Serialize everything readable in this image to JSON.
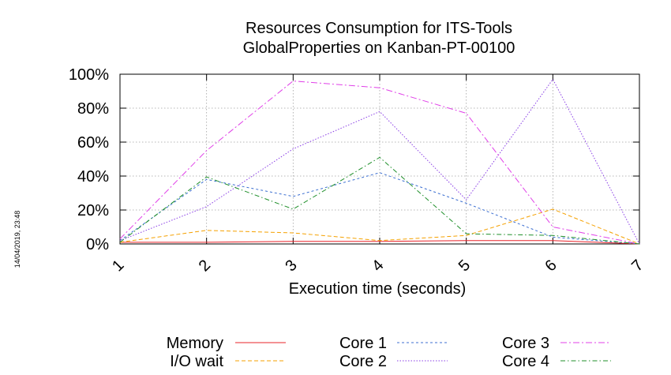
{
  "chart_data": {
    "type": "line",
    "title": "Resources Consumption for ITS-Tools",
    "subtitle": "GlobalProperties on Kanban-PT-00100",
    "xlabel": "Execution time (seconds)",
    "ylabel": "",
    "x": [
      1,
      2,
      3,
      4,
      5,
      6,
      7
    ],
    "x_ticks": [
      "1",
      "2",
      "3",
      "4",
      "5",
      "6",
      "7"
    ],
    "xlim": [
      1,
      7
    ],
    "y_ticks": [
      "0%",
      "20%",
      "40%",
      "60%",
      "80%",
      "100%"
    ],
    "ylim": [
      0,
      100
    ],
    "grid": true,
    "legend_position": "bottom",
    "timestamp": "14/04/2019, 23:48",
    "series": [
      {
        "name": "Memory",
        "color": "#e8232a",
        "dash": "",
        "values": [
          1,
          1,
          1.5,
          1.5,
          2,
          2,
          0
        ]
      },
      {
        "name": "I/O wait",
        "color": "#f5a100",
        "dash": "5,3",
        "values": [
          1,
          8,
          6.5,
          2,
          5,
          20.5,
          0
        ]
      },
      {
        "name": "Core 1",
        "color": "#3c6fd1",
        "dash": "3,3",
        "values": [
          2,
          38,
          28,
          42,
          24,
          4,
          0
        ]
      },
      {
        "name": "Core 2",
        "color": "#8a3ee6",
        "dash": "1.5,2",
        "values": [
          2,
          22,
          56,
          78,
          26,
          97,
          0
        ]
      },
      {
        "name": "Core 3",
        "color": "#e040e8",
        "dash": "8,3,2,3",
        "values": [
          3,
          55,
          96,
          92,
          77,
          10,
          0
        ]
      },
      {
        "name": "Core 4",
        "color": "#1f8f2a",
        "dash": "6,3,1.5,3",
        "values": [
          1,
          39.5,
          20.5,
          51,
          6,
          5,
          0
        ]
      }
    ]
  }
}
